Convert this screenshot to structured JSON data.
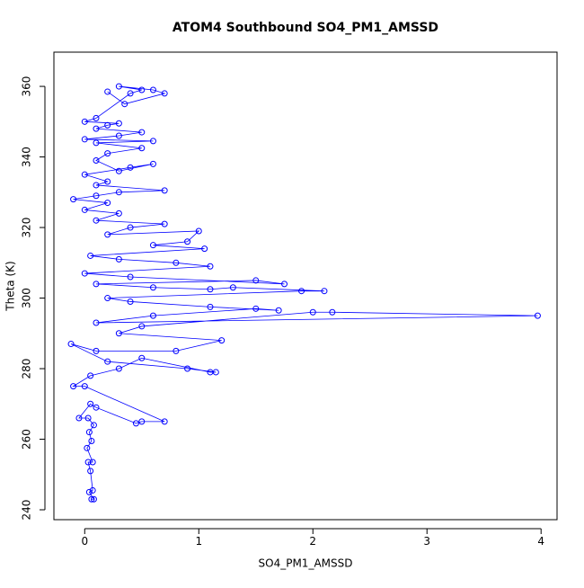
{
  "chart_data": {
    "type": "scatter",
    "title": "ATOM4 Southbound SO4_PM1_AMSSD",
    "x_label": "SO4_PM1_AMSSD",
    "y_label": "Theta (K)",
    "color": "#0000ff",
    "connect_points": true,
    "x": [
      0.06,
      0.08,
      0.04,
      0.07,
      0.05,
      0.03,
      0.07,
      0.02,
      0.06,
      0.04,
      0.08,
      0.03,
      -0.05,
      0.05,
      0.1,
      0.45,
      0.5,
      0.7,
      0.0,
      -0.1,
      0.05,
      0.3,
      0.5,
      1.1,
      1.15,
      0.9,
      0.2,
      -0.12,
      0.1,
      0.8,
      1.2,
      0.3,
      0.5,
      2.0,
      2.17,
      3.97,
      0.1,
      0.6,
      1.5,
      1.7,
      1.1,
      0.4,
      0.2,
      1.9,
      2.1,
      1.3,
      1.1,
      0.6,
      0.1,
      1.5,
      1.75,
      0.4,
      0.0,
      1.1,
      0.8,
      0.3,
      0.05,
      1.05,
      0.6,
      0.9,
      1.0,
      0.2,
      0.4,
      0.7,
      0.1,
      0.3,
      0.0,
      0.2,
      -0.1,
      0.1,
      0.3,
      0.7,
      0.1,
      0.2,
      0.0,
      0.4,
      0.6,
      0.3,
      0.1,
      0.2,
      0.5,
      0.1,
      0.6,
      0.0,
      0.3,
      0.5,
      0.1,
      0.2,
      0.3,
      0.0,
      0.1,
      0.4,
      0.5,
      0.3,
      0.6,
      0.7,
      0.35,
      0.2
    ],
    "values": [
      243,
      243,
      245,
      245.5,
      251,
      253.5,
      253.5,
      257.5,
      259.5,
      262,
      264,
      266,
      266,
      270,
      269,
      264.5,
      265,
      265,
      275,
      275,
      278,
      280,
      283,
      279,
      279,
      280,
      282,
      287,
      285,
      285,
      288,
      290,
      292,
      296,
      296,
      295,
      293,
      295,
      297,
      296.5,
      297.5,
      299,
      300,
      302,
      302,
      303,
      302.5,
      303,
      304,
      305,
      304,
      306,
      307,
      309,
      310,
      311,
      312,
      314,
      315,
      316,
      319,
      318,
      320,
      321,
      322,
      324,
      325,
      327,
      328,
      329,
      330,
      330.5,
      332,
      333,
      335,
      337,
      338,
      336,
      339,
      341,
      342.5,
      344,
      344.5,
      345,
      346,
      347,
      348,
      349,
      349.5,
      350,
      351,
      358,
      359,
      360,
      359,
      358,
      355,
      358.5
    ],
    "xlim": [
      -0.27,
      4.14
    ],
    "ylim": [
      237.2,
      369.7
    ],
    "xticks": [
      0,
      1,
      2,
      3,
      4
    ],
    "yticks": [
      240,
      260,
      280,
      300,
      320,
      340,
      360
    ]
  }
}
